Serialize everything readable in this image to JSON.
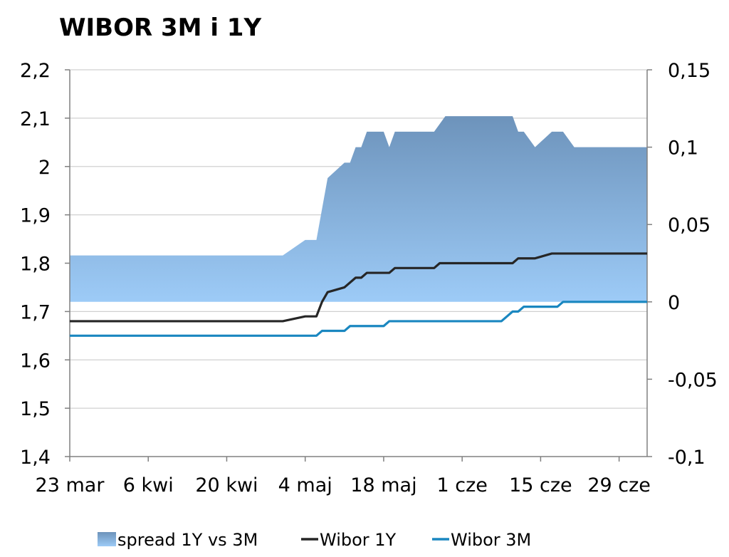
{
  "chart_data": {
    "type": "line",
    "title": "WIBOR 3M i 1Y",
    "xlabel": "",
    "ylabel": "",
    "x_tick_labels": [
      "23 mar",
      "6 kwi",
      "20 kwi",
      "4 maj",
      "18 maj",
      "1 cze",
      "15 cze",
      "29 cze"
    ],
    "y_left": {
      "min": 1.4,
      "max": 2.2,
      "step": 0.1,
      "tick_labels": [
        "1,4",
        "1,5",
        "1,6",
        "1,7",
        "1,8",
        "1,9",
        "2",
        "2,1",
        "2,2"
      ]
    },
    "y_right": {
      "min": -0.1,
      "max": 0.15,
      "step": 0.05,
      "tick_labels": [
        "-0,1",
        "-0,05",
        "0",
        "0,05",
        "0,1",
        "0,15"
      ]
    },
    "grid": "horizontal",
    "legend_position": "bottom",
    "x_domain": [
      "2015-03-23",
      "2015-07-04"
    ],
    "series": [
      {
        "name": "spread 1Y vs 3M",
        "type": "area",
        "axis": "right",
        "color_top": "#6d93bb",
        "color_bottom": "#9dcbf7",
        "points": [
          [
            "2015-03-23",
            0.03
          ],
          [
            "2015-04-30",
            0.03
          ],
          [
            "2015-05-04",
            0.04
          ],
          [
            "2015-05-06",
            0.04
          ],
          [
            "2015-05-08",
            0.08
          ],
          [
            "2015-05-11",
            0.09
          ],
          [
            "2015-05-12",
            0.09
          ],
          [
            "2015-05-13",
            0.1
          ],
          [
            "2015-05-14",
            0.1
          ],
          [
            "2015-05-15",
            0.11
          ],
          [
            "2015-05-18",
            0.11
          ],
          [
            "2015-05-19",
            0.1
          ],
          [
            "2015-05-20",
            0.11
          ],
          [
            "2015-05-27",
            0.11
          ],
          [
            "2015-05-29",
            0.12
          ],
          [
            "2015-06-10",
            0.12
          ],
          [
            "2015-06-11",
            0.11
          ],
          [
            "2015-06-12",
            0.11
          ],
          [
            "2015-06-14",
            0.1
          ],
          [
            "2015-06-17",
            0.11
          ],
          [
            "2015-06-19",
            0.11
          ],
          [
            "2015-06-21",
            0.1
          ],
          [
            "2015-07-04",
            0.1
          ]
        ]
      },
      {
        "name": "Wibor 1Y",
        "type": "line",
        "axis": "left",
        "color": "#262626",
        "points": [
          [
            "2015-03-23",
            1.68
          ],
          [
            "2015-04-30",
            1.68
          ],
          [
            "2015-05-04",
            1.69
          ],
          [
            "2015-05-06",
            1.69
          ],
          [
            "2015-05-07",
            1.72
          ],
          [
            "2015-05-08",
            1.74
          ],
          [
            "2015-05-11",
            1.75
          ],
          [
            "2015-05-13",
            1.77
          ],
          [
            "2015-05-14",
            1.77
          ],
          [
            "2015-05-15",
            1.78
          ],
          [
            "2015-05-19",
            1.78
          ],
          [
            "2015-05-20",
            1.79
          ],
          [
            "2015-05-27",
            1.79
          ],
          [
            "2015-05-28",
            1.8
          ],
          [
            "2015-06-10",
            1.8
          ],
          [
            "2015-06-11",
            1.81
          ],
          [
            "2015-06-14",
            1.81
          ],
          [
            "2015-06-17",
            1.82
          ],
          [
            "2015-07-04",
            1.82
          ]
        ]
      },
      {
        "name": "Wibor 3M",
        "type": "line",
        "axis": "left",
        "color": "#1a87c0",
        "points": [
          [
            "2015-03-23",
            1.65
          ],
          [
            "2015-05-06",
            1.65
          ],
          [
            "2015-05-07",
            1.66
          ],
          [
            "2015-05-11",
            1.66
          ],
          [
            "2015-05-12",
            1.67
          ],
          [
            "2015-05-18",
            1.67
          ],
          [
            "2015-05-19",
            1.68
          ],
          [
            "2015-06-08",
            1.68
          ],
          [
            "2015-06-09",
            1.69
          ],
          [
            "2015-06-10",
            1.7
          ],
          [
            "2015-06-11",
            1.7
          ],
          [
            "2015-06-12",
            1.71
          ],
          [
            "2015-06-18",
            1.71
          ],
          [
            "2015-06-19",
            1.72
          ],
          [
            "2015-07-04",
            1.72
          ]
        ]
      }
    ]
  }
}
